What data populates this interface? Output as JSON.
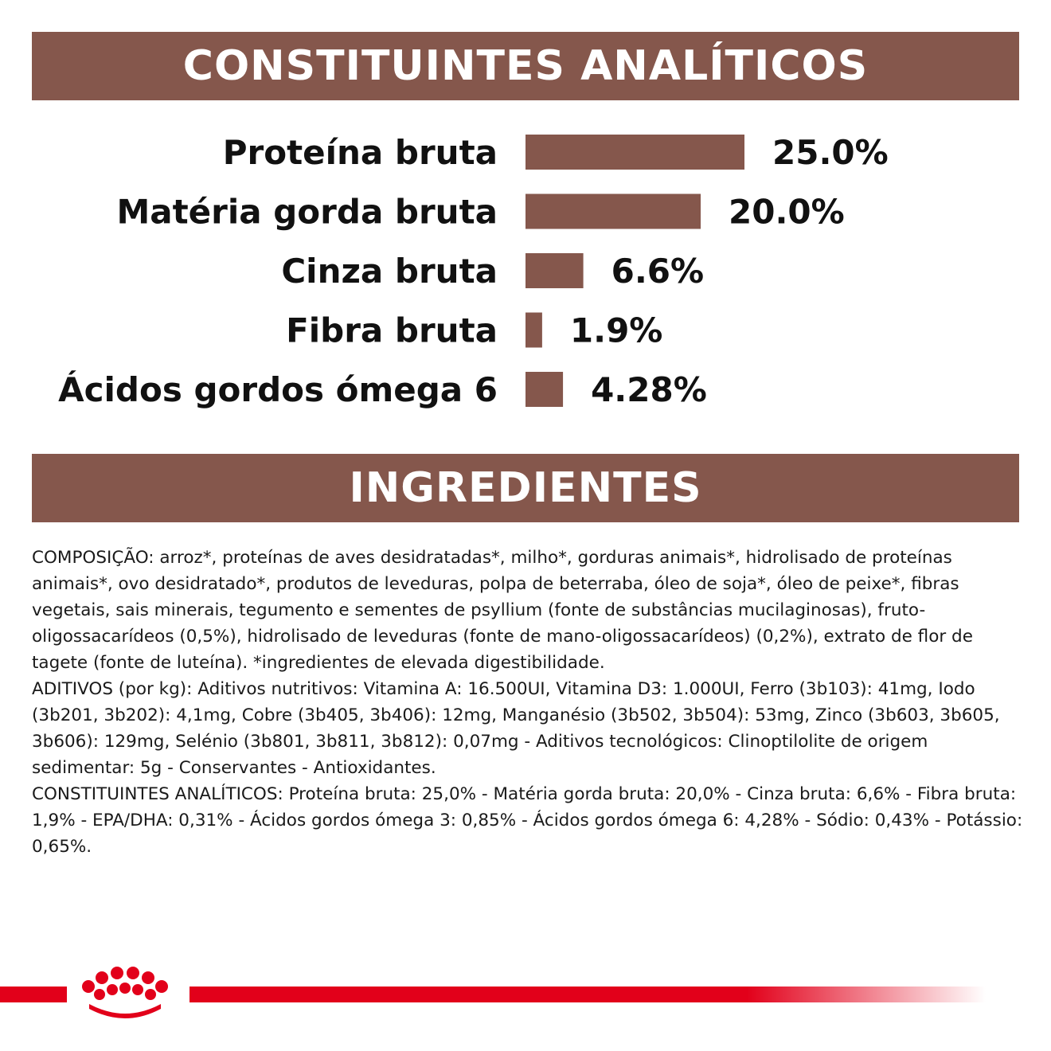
{
  "colors": {
    "bar": "#85574c",
    "banner": "#85574c",
    "brand_red": "#e2001a"
  },
  "banners": {
    "analytic_title": "CONSTITUINTES ANALÍTICOS",
    "ingredients_title": "INGREDIENTES"
  },
  "chart_data": {
    "type": "bar",
    "orientation": "horizontal",
    "categories": [
      "Proteína bruta",
      "Matéria gorda bruta",
      "Cinza bruta",
      "Fibra bruta",
      "Ácidos gordos ómega 6"
    ],
    "values": [
      25.0,
      20.0,
      6.6,
      1.9,
      4.28
    ],
    "value_labels": [
      "25.0%",
      "20.0%",
      "6.6%",
      "1.9%",
      "4.28%"
    ],
    "unit": "%",
    "xlim": [
      0,
      25.0
    ],
    "grid": false,
    "legend": "none"
  },
  "ingredients": {
    "composition": "COMPOSIÇÃO: arroz*, proteínas de aves desidratadas*, milho*, gorduras animais*, hidrolisado de proteínas animais*, ovo desidratado*, produtos de leveduras, polpa de beterraba, óleo de soja*, óleo de peixe*, fibras vegetais, sais minerais, tegumento e sementes de psyllium (fonte de substâncias mucilaginosas), fruto-oligossacarídeos (0,5%), hidrolisado de leveduras (fonte de mano-oligossacarídeos) (0,2%), extrato de flor de tagete (fonte de luteína). *ingredientes de elevada digestibilidade.",
    "additives": "ADITIVOS (por kg): Aditivos nutritivos: Vitamina A: 16.500UI, Vitamina D3: 1.000UI, Ferro (3b103): 41mg, Iodo (3b201, 3b202): 4,1mg, Cobre (3b405, 3b406): 12mg, Manganésio (3b502, 3b504): 53mg, Zinco (3b603, 3b605, 3b606): 129mg, Selénio (3b801, 3b811, 3b812): 0,07mg - Aditivos tecnológicos: Clinoptilolite de origem sedimentar: 5g - Conservantes - Antioxidantes.",
    "analytic": "CONSTITUINTES ANALÍTICOS: Proteína bruta: 25,0% - Matéria gorda bruta: 20,0% - Cinza bruta: 6,6% - Fibra bruta: 1,9% - EPA/DHA: 0,31% - Ácidos gordos ómega 3: 0,85% - Ácidos gordos ómega 6: 4,28% - Sódio: 0,43% - Potássio: 0,65%."
  },
  "footer": {
    "logo_icon": "royal-canin-crown-icon"
  }
}
